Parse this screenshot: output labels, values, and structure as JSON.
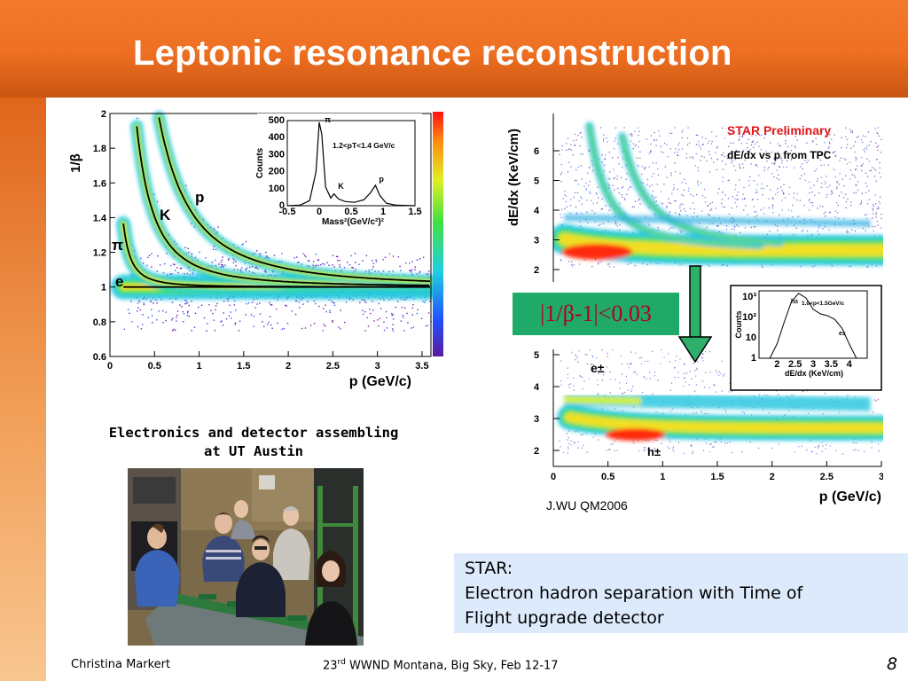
{
  "slide": {
    "title": "Leptonic resonance reconstruction",
    "photo_caption_line1": "Electronics and detector assembling",
    "photo_caption_line2": "at UT Austin",
    "cut_label": "|1/β-1|<0.03",
    "credit": "J.WU QM2006",
    "note_line1": "STAR:",
    "note_line2": "Electron hadron separation with Time of",
    "note_line3": "Flight upgrade detector"
  },
  "footer": {
    "author": "Christina Markert",
    "conf_pre": "23",
    "conf_sup": "rd",
    "conf_post": " WWND Montana, Big Sky, Feb  12-17",
    "page_number": "8"
  },
  "chart_data": [
    {
      "type": "heatmap",
      "xlabel": "p (GeV/c)",
      "ylabel": "1/β",
      "xlim": [
        0,
        3.6
      ],
      "ylim": [
        0.6,
        2
      ],
      "xticks": [
        "0",
        "0.5",
        "1",
        "1.5",
        "2",
        "2.5",
        "3",
        "3.5"
      ],
      "yticks": [
        "0.6",
        "0.8",
        "1",
        "1.2",
        "1.4",
        "1.6",
        "1.8",
        "2"
      ],
      "band_labels": [
        "e",
        "π",
        "K",
        "p"
      ],
      "inset": {
        "type": "line",
        "xlabel": "Mass²(GeV/c²)²",
        "ylabel": "Counts",
        "annotation": "1.2<pT<1.4 GeV/c",
        "xlim": [
          -0.5,
          1.5
        ],
        "ylim": [
          0,
          500
        ],
        "xticks": [
          "-0.5",
          "0",
          "0.5",
          "1",
          "1.5"
        ],
        "yticks": [
          "0",
          "100",
          "200",
          "300",
          "400",
          "500"
        ],
        "peak_labels": [
          "π",
          "K",
          "p"
        ],
        "x": [
          -0.5,
          -0.3,
          -0.15,
          -0.05,
          0.0,
          0.04,
          0.1,
          0.18,
          0.23,
          0.3,
          0.4,
          0.55,
          0.7,
          0.8,
          0.88,
          0.95,
          1.05,
          1.2,
          1.5
        ],
        "y": [
          0,
          3,
          30,
          200,
          490,
          420,
          110,
          45,
          70,
          40,
          25,
          20,
          35,
          75,
          120,
          60,
          15,
          3,
          0
        ]
      }
    },
    {
      "type": "heatmap",
      "title": "STAR Preliminary",
      "subtitle": "dE/dx vs p from TPC",
      "xlabel": "p (GeV/c)",
      "ylabel": "dE/dx (KeV/cm)",
      "xlim": [
        0,
        3
      ],
      "xticks": [
        "0",
        "0.5",
        "1",
        "1.5",
        "2",
        "2.5",
        "3"
      ],
      "top_yticks": [
        "2",
        "3",
        "4",
        "5",
        "6"
      ],
      "bottom_yticks": [
        "2",
        "3",
        "4",
        "5"
      ],
      "band_labels": [
        "e±",
        "h±"
      ],
      "inset": {
        "type": "line",
        "xlabel": "dE/dx (KeV/cm)",
        "ylabel": "Counts",
        "annotation": "1.0<p<1.5GeV/c",
        "log_y": true,
        "xlim": [
          1.5,
          4.5
        ],
        "xticks": [
          "2",
          "2.5",
          "3",
          "3.5",
          "4"
        ],
        "yticks": [
          "1",
          "10",
          "10²",
          "10³"
        ],
        "peak_labels": [
          "h±",
          "e±"
        ],
        "x": [
          1.8,
          2.0,
          2.2,
          2.4,
          2.6,
          2.8,
          3.0,
          3.2,
          3.4,
          3.6,
          3.8,
          4.0,
          4.2
        ],
        "y": [
          1,
          5,
          60,
          600,
          1500,
          900,
          250,
          150,
          120,
          80,
          30,
          5,
          1
        ]
      }
    }
  ]
}
